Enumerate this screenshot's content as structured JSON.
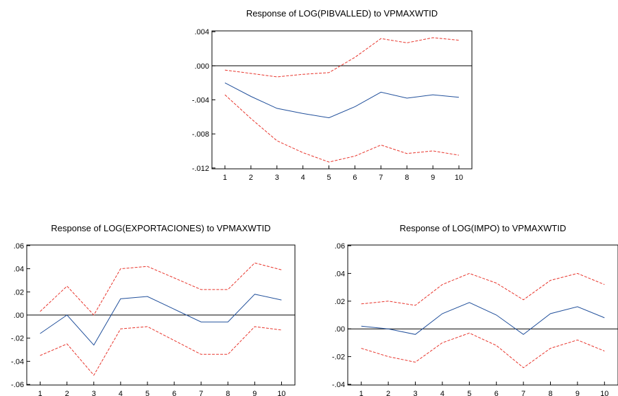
{
  "chart_data": [
    {
      "type": "line",
      "title": "Response of LOG(PIBVALLED) to VPMAXWTID",
      "x": [
        1,
        2,
        3,
        4,
        5,
        6,
        7,
        8,
        9,
        10
      ],
      "x_tick_labels": [
        "1",
        "2",
        "3",
        "4",
        "5",
        "6",
        "7",
        "8",
        "9",
        "10"
      ],
      "y_ticks": [
        0.004,
        0.0,
        -0.004,
        -0.008,
        -0.012
      ],
      "y_tick_labels": [
        ".004",
        ".000",
        "-.004",
        "-.008",
        "-.012"
      ],
      "ylim": [
        -0.0121,
        0.0041
      ],
      "grid": false,
      "series": [
        {
          "role": "response",
          "color": "#1f4e9a",
          "dash": "solid",
          "values": [
            -0.002,
            -0.0036,
            -0.005,
            -0.0056,
            -0.0061,
            -0.0048,
            -0.0031,
            -0.0038,
            -0.0034,
            -0.0037
          ]
        },
        {
          "role": "upper band",
          "color": "#e8332a",
          "dash": "dashed",
          "values": [
            -0.0005,
            -0.0009,
            -0.0013,
            -0.001,
            -0.0008,
            0.001,
            0.0032,
            0.0027,
            0.0033,
            0.003
          ]
        },
        {
          "role": "lower band",
          "color": "#e8332a",
          "dash": "dashed",
          "values": [
            -0.0034,
            -0.0062,
            -0.0088,
            -0.0102,
            -0.0113,
            -0.0106,
            -0.0093,
            -0.0103,
            -0.01,
            -0.0105
          ]
        }
      ]
    },
    {
      "type": "line",
      "title": "Response of LOG(EXPORTACIONES) to VPMAXWTID",
      "x": [
        1,
        2,
        3,
        4,
        5,
        6,
        7,
        8,
        9,
        10
      ],
      "x_tick_labels": [
        "1",
        "2",
        "3",
        "4",
        "5",
        "6",
        "7",
        "8",
        "9",
        "10"
      ],
      "y_ticks": [
        0.06,
        0.04,
        0.02,
        0.0,
        -0.02,
        -0.04,
        -0.06
      ],
      "y_tick_labels": [
        ".06",
        ".04",
        ".02",
        ".00",
        "-.02",
        "-.04",
        "-.06"
      ],
      "ylim": [
        -0.0605,
        0.0605
      ],
      "grid": false,
      "series": [
        {
          "role": "response",
          "color": "#1f4e9a",
          "dash": "solid",
          "values": [
            -0.016,
            0.0,
            -0.026,
            0.014,
            0.016,
            0.005,
            -0.006,
            -0.006,
            0.018,
            0.013
          ]
        },
        {
          "role": "upper band",
          "color": "#e8332a",
          "dash": "dashed",
          "values": [
            0.003,
            0.025,
            0.0,
            0.04,
            0.042,
            0.032,
            0.022,
            0.022,
            0.045,
            0.039
          ]
        },
        {
          "role": "lower band",
          "color": "#e8332a",
          "dash": "dashed",
          "values": [
            -0.035,
            -0.025,
            -0.052,
            -0.012,
            -0.01,
            -0.022,
            -0.034,
            -0.034,
            -0.01,
            -0.013
          ]
        }
      ]
    },
    {
      "type": "line",
      "title": "Response of LOG(IMPO) to VPMAXWTID",
      "x": [
        1,
        2,
        3,
        4,
        5,
        6,
        7,
        8,
        9,
        10
      ],
      "x_tick_labels": [
        "1",
        "2",
        "3",
        "4",
        "5",
        "6",
        "7",
        "8",
        "9",
        "10"
      ],
      "y_ticks": [
        0.06,
        0.04,
        0.02,
        0.0,
        -0.02,
        -0.04
      ],
      "y_tick_labels": [
        ".06",
        ".04",
        ".02",
        ".00",
        "-.02",
        "-.04"
      ],
      "ylim": [
        -0.0405,
        0.0605
      ],
      "grid": false,
      "series": [
        {
          "role": "response",
          "color": "#1f4e9a",
          "dash": "solid",
          "values": [
            0.002,
            0.0,
            -0.004,
            0.011,
            0.019,
            0.01,
            -0.004,
            0.011,
            0.016,
            0.008
          ]
        },
        {
          "role": "upper band",
          "color": "#e8332a",
          "dash": "dashed",
          "values": [
            0.018,
            0.02,
            0.017,
            0.032,
            0.04,
            0.033,
            0.021,
            0.035,
            0.04,
            0.032
          ]
        },
        {
          "role": "lower band",
          "color": "#e8332a",
          "dash": "dashed",
          "values": [
            -0.014,
            -0.02,
            -0.024,
            -0.01,
            -0.003,
            -0.012,
            -0.028,
            -0.014,
            -0.008,
            -0.016
          ]
        }
      ]
    }
  ]
}
